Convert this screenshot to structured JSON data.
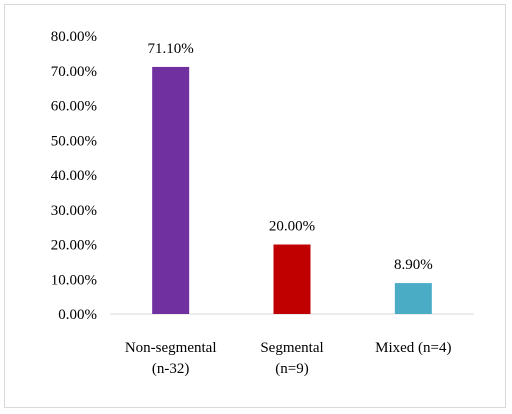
{
  "chart_data": {
    "type": "bar",
    "title": "",
    "xlabel": "",
    "ylabel": "",
    "categories": [
      [
        "Non-segmental",
        "(n-32)"
      ],
      [
        "Segmental",
        "(n=9)"
      ],
      [
        "Mixed (n=4)"
      ]
    ],
    "values": [
      71.1,
      20.0,
      8.9
    ],
    "data_labels": [
      "71.10%",
      "20.00%",
      "8.90%"
    ],
    "bar_colors": [
      "#7030a0",
      "#c00000",
      "#4bacc6"
    ],
    "ylim": [
      0,
      80
    ],
    "ytick_values": [
      0,
      10,
      20,
      30,
      40,
      50,
      60,
      70,
      80
    ],
    "ytick_labels": [
      "0.00%",
      "10.00%",
      "20.00%",
      "30.00%",
      "40.00%",
      "50.00%",
      "60.00%",
      "70.00%",
      "80.00%"
    ],
    "grid": false,
    "legend": "none"
  }
}
